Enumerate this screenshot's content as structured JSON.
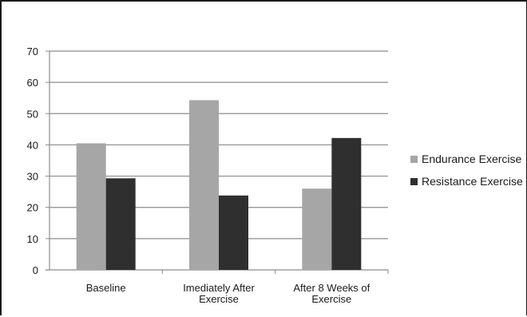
{
  "chart_data": {
    "type": "bar",
    "categories": [
      [
        "Baseline"
      ],
      [
        "Imediately After",
        "Exercise"
      ],
      [
        "After 8 Weeks of",
        "Exercise"
      ]
    ],
    "series": [
      {
        "name": "Endurance Exercise",
        "values": [
          40.5,
          54.3,
          26
        ],
        "color": "#a6a6a6"
      },
      {
        "name": "Resistance Exercise",
        "values": [
          29.3,
          23.8,
          42.2
        ],
        "color": "#2f2f2f"
      }
    ],
    "ylim": [
      0,
      70
    ],
    "yticks": [
      0,
      10,
      20,
      30,
      40,
      50,
      60,
      70
    ],
    "grid": true,
    "legend_position": "right",
    "title": "",
    "xlabel": "",
    "ylabel": ""
  }
}
